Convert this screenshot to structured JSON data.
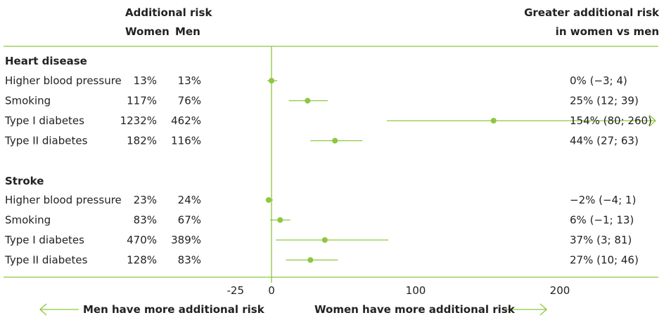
{
  "header": {
    "additional_risk": "Additional risk",
    "women": "Women",
    "men": "Men",
    "greater_line1": "Greater additional risk",
    "greater_line2": "in women vs men"
  },
  "footer": {
    "left_label": "Men have more additional risk",
    "right_label": "Women have more additional risk"
  },
  "colors": {
    "accent": "#8dc63f",
    "text": "#222222"
  },
  "chart_data": {
    "type": "forest",
    "x_ticks": [
      "-25",
      "0",
      "100",
      "200"
    ],
    "xlim": [
      -25,
      260
    ],
    "sections": [
      {
        "title": "Heart disease",
        "rows": [
          {
            "label": "Higher blood pressure",
            "women": "13%",
            "men": "13%",
            "estimate": 0,
            "low": -3,
            "high": 4,
            "ci_text": "0% (−3; 4)",
            "arrow": false
          },
          {
            "label": "Smoking",
            "women": "117%",
            "men": "76%",
            "estimate": 25,
            "low": 12,
            "high": 39,
            "ci_text": "25% (12; 39)",
            "arrow": false
          },
          {
            "label": "Type I diabetes",
            "women": "1232%",
            "men": "462%",
            "estimate": 154,
            "low": 80,
            "high": 260,
            "ci_text": "154% (80; 260)",
            "arrow": true
          },
          {
            "label": "Type II diabetes",
            "women": "182%",
            "men": "116%",
            "estimate": 44,
            "low": 27,
            "high": 63,
            "ci_text": "44% (27; 63)",
            "arrow": false
          }
        ]
      },
      {
        "title": "Stroke",
        "rows": [
          {
            "label": "Higher blood pressure",
            "women": "23%",
            "men": "24%",
            "estimate": -2,
            "low": -4,
            "high": 1,
            "ci_text": "−2% (−4; 1)",
            "arrow": false
          },
          {
            "label": "Smoking",
            "women": "83%",
            "men": "67%",
            "estimate": 6,
            "low": -1,
            "high": 13,
            "ci_text": "6% (−1; 13)",
            "arrow": false
          },
          {
            "label": "Type I diabetes",
            "women": "470%",
            "men": "389%",
            "estimate": 37,
            "low": 3,
            "high": 81,
            "ci_text": "37% (3; 81)",
            "arrow": false
          },
          {
            "label": "Type II diabetes",
            "women": "128%",
            "men": "83%",
            "estimate": 27,
            "low": 10,
            "high": 46,
            "ci_text": "27% (10; 46)",
            "arrow": false
          }
        ]
      }
    ]
  }
}
